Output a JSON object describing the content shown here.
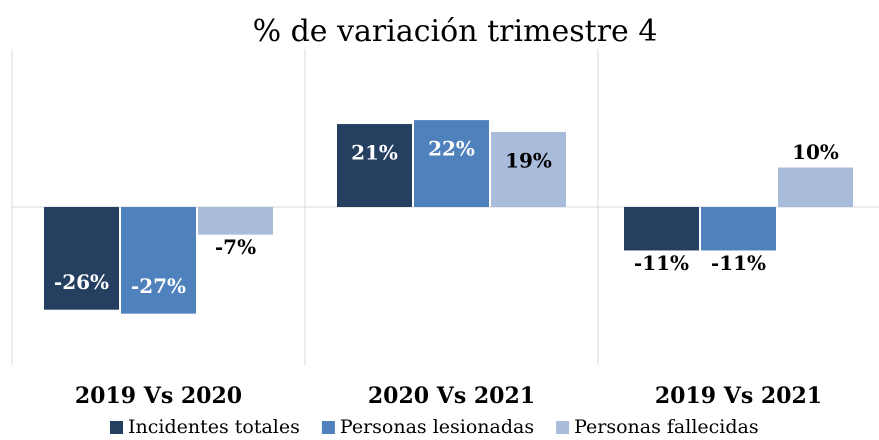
{
  "chart_data": {
    "type": "bar",
    "title": "% de variación trimestre 4",
    "categories": [
      "2019 Vs 2020",
      "2020 Vs 2021",
      "2019 Vs 2021"
    ],
    "series": [
      {
        "name": "Incidentes totales",
        "color": "#243f60",
        "values": [
          -26,
          21,
          -11
        ],
        "value_labels": [
          "-26%",
          "21%",
          "-11%"
        ]
      },
      {
        "name": "Personas lesionadas",
        "color": "#4f81bd",
        "values": [
          -27,
          22,
          -11
        ],
        "value_labels": [
          "-27%",
          "22%",
          "-11%"
        ]
      },
      {
        "name": "Personas fallecidas",
        "color": "#a9bcdb",
        "values": [
          -7,
          19,
          10
        ],
        "value_labels": [
          "-7%",
          "19%",
          "10%"
        ]
      }
    ],
    "ylim": [
      -40,
      40
    ],
    "legend": "bottom"
  }
}
